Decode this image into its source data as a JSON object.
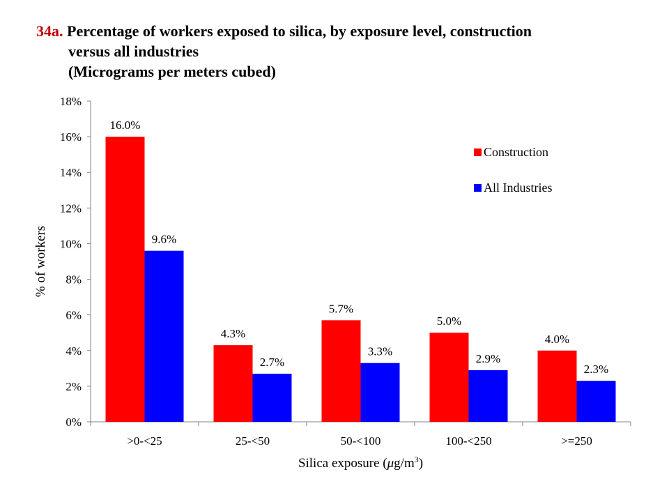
{
  "title": {
    "number": "34a.",
    "line1": "Percentage of workers exposed to silica, by exposure level, construction",
    "line2": "versus all industries",
    "line3": "(Micrograms per meters cubed)"
  },
  "colors": {
    "construction": "#ff0000",
    "all_industries": "#0000ff",
    "title_number": "#c00000"
  },
  "chart_data": {
    "type": "bar",
    "categories": [
      ">0-<25",
      "25-<50",
      "50-<100",
      "100-<250",
      ">=250"
    ],
    "series": [
      {
        "name": "Construction",
        "values": [
          16.0,
          4.3,
          5.7,
          5.0,
          4.0
        ],
        "labels": [
          "16.0%",
          "4.3%",
          "5.7%",
          "5.0%",
          "4.0%"
        ]
      },
      {
        "name": "All Industries",
        "values": [
          9.6,
          2.7,
          3.3,
          2.9,
          2.3
        ],
        "labels": [
          "9.6%",
          "2.7%",
          "3.3%",
          "2.9%",
          "2.3%"
        ]
      }
    ],
    "ylabel": "% of workers",
    "xlabel_prefix": "Silica  exposure (",
    "xlabel_unit_mu": "μ",
    "xlabel_unit_rest": "g/m",
    "xlabel_sup": "3",
    "xlabel_suffix": ")",
    "ylim": [
      0,
      18
    ],
    "yticks": [
      0,
      2,
      4,
      6,
      8,
      10,
      12,
      14,
      16,
      18
    ],
    "ytick_labels": [
      "0%",
      "2%",
      "4%",
      "6%",
      "8%",
      "10%",
      "12%",
      "14%",
      "16%",
      "18%"
    ],
    "legend_position": "right",
    "grid": false
  }
}
